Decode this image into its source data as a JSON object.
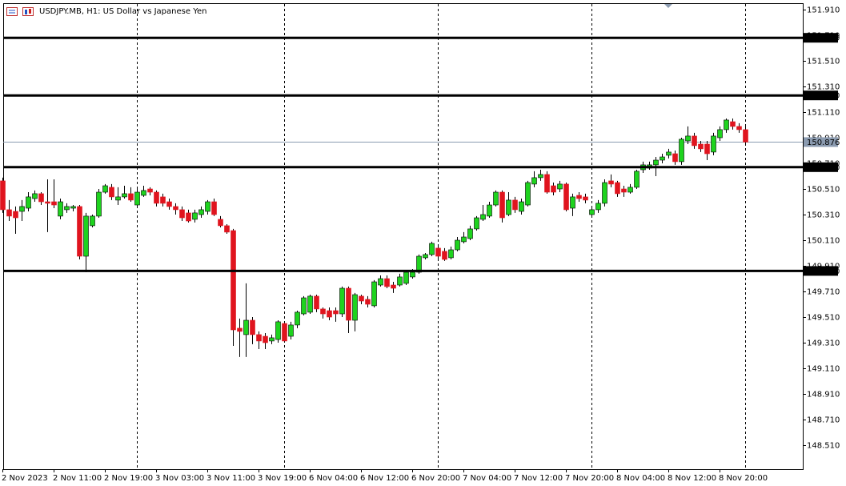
{
  "chart_data": {
    "type": "candlestick",
    "title": "USDJPY.MB, H1:  US Dollar vs Japanese Yen",
    "up_color": "#1ed31e",
    "down_color": "#e0141e",
    "x": [
      "2 Nov 2023",
      null,
      null,
      null,
      null,
      null,
      null,
      null,
      "2 Nov 11:00",
      null,
      null,
      null,
      null,
      null,
      null,
      null,
      "2 Nov 19:00",
      null,
      null,
      null,
      null,
      null,
      null,
      null,
      "3 Nov 03:00",
      null,
      null,
      null,
      null,
      null,
      null,
      null,
      "3 Nov 11:00",
      null,
      null,
      null,
      null,
      null,
      null,
      null,
      "3 Nov 19:00",
      null,
      null,
      null,
      null,
      null,
      null,
      null,
      "6 Nov 04:00",
      null,
      null,
      null,
      null,
      null,
      null,
      null,
      "6 Nov 12:00",
      null,
      null,
      null,
      null,
      null,
      null,
      null,
      "6 Nov 20:00",
      null,
      null,
      null,
      null,
      null,
      null,
      null,
      "7 Nov 04:00",
      null,
      null,
      null,
      null,
      null,
      null,
      null,
      "7 Nov 12:00",
      null,
      null,
      null,
      null,
      null,
      null,
      null,
      "7 Nov 20:00",
      null,
      null,
      null,
      null,
      null,
      null,
      null,
      "8 Nov 04:00",
      null,
      null,
      null,
      null,
      null,
      null,
      null,
      "8 Nov 12:00",
      null,
      null,
      null,
      null,
      null,
      null,
      null,
      "8 Nov 20:00",
      null,
      null,
      null,
      null
    ],
    "open": [
      150.573,
      150.348,
      150.335,
      150.335,
      150.36,
      150.435,
      150.473,
      150.41,
      150.41,
      150.298,
      150.348,
      150.36,
      150.373,
      149.985,
      150.223,
      150.298,
      150.485,
      150.523,
      150.423,
      150.448,
      150.473,
      150.385,
      150.46,
      150.51,
      150.485,
      150.448,
      150.41,
      150.373,
      150.348,
      150.323,
      150.273,
      150.31,
      150.335,
      150.41,
      150.273,
      150.223,
      150.185,
      149.423,
      149.373,
      149.485,
      149.373,
      149.36,
      149.323,
      149.335,
      149.46,
      149.36,
      149.448,
      149.535,
      149.548,
      149.673,
      149.573,
      149.56,
      149.56,
      149.535,
      149.735,
      149.485,
      149.673,
      149.648,
      149.598,
      149.76,
      149.81,
      149.76,
      149.76,
      149.773,
      149.823,
      149.86,
      149.973,
      149.998,
      150.048,
      150.023,
      149.973,
      150.035,
      150.098,
      150.123,
      150.198,
      150.273,
      150.298,
      150.385,
      150.485,
      150.31,
      150.423,
      150.335,
      150.385,
      150.548,
      150.598,
      150.623,
      150.535,
      150.51,
      150.548,
      150.36,
      150.46,
      150.448,
      150.31,
      150.348,
      150.398,
      150.573,
      150.56,
      150.51,
      150.485,
      150.523,
      150.66,
      150.673,
      150.698,
      150.735,
      150.773,
      150.785,
      150.723,
      150.885,
      150.923,
      150.86,
      150.86,
      150.798,
      150.91,
      150.973,
      151.035,
      150.998,
      150.973
    ],
    "high": [
      150.598,
      150.423,
      150.373,
      150.423,
      150.485,
      150.498,
      150.485,
      150.585,
      150.585,
      150.435,
      150.398,
      150.385,
      150.385,
      150.323,
      150.31,
      150.51,
      150.548,
      150.548,
      150.523,
      150.535,
      150.523,
      150.51,
      150.535,
      150.523,
      150.498,
      150.473,
      150.435,
      150.398,
      150.373,
      150.348,
      150.348,
      150.373,
      150.423,
      150.435,
      150.298,
      150.235,
      150.198,
      149.498,
      149.773,
      149.51,
      149.398,
      149.385,
      149.373,
      149.485,
      149.473,
      149.473,
      149.56,
      149.673,
      149.685,
      149.685,
      149.585,
      149.585,
      149.585,
      149.748,
      149.748,
      149.698,
      149.685,
      149.673,
      149.798,
      149.835,
      149.835,
      149.785,
      149.848,
      149.873,
      149.885,
      149.998,
      150.01,
      150.098,
      150.073,
      150.048,
      150.06,
      150.135,
      150.173,
      150.223,
      150.298,
      150.385,
      150.41,
      150.498,
      150.498,
      150.485,
      150.448,
      150.435,
      150.573,
      150.648,
      150.66,
      150.648,
      150.56,
      150.573,
      150.56,
      150.473,
      150.485,
      150.473,
      150.373,
      150.423,
      150.585,
      150.623,
      150.573,
      150.535,
      150.548,
      150.66,
      150.723,
      150.723,
      150.76,
      150.785,
      150.823,
      150.81,
      150.91,
      150.998,
      150.948,
      150.885,
      150.885,
      150.948,
      150.998,
      151.06,
      151.06,
      151.023,
      150.998
    ],
    "low": [
      150.323,
      150.26,
      150.16,
      150.26,
      150.335,
      150.41,
      150.385,
      150.173,
      150.36,
      150.273,
      150.323,
      150.335,
      149.96,
      149.86,
      150.21,
      150.285,
      150.473,
      150.423,
      150.385,
      150.435,
      150.41,
      150.36,
      150.448,
      150.46,
      150.373,
      150.373,
      150.348,
      150.31,
      150.26,
      150.248,
      150.248,
      150.285,
      150.31,
      150.298,
      150.21,
      150.16,
      149.285,
      149.198,
      149.198,
      149.298,
      149.26,
      149.26,
      149.298,
      149.31,
      149.31,
      149.335,
      149.423,
      149.523,
      149.535,
      149.548,
      149.498,
      149.485,
      149.473,
      149.51,
      149.385,
      149.398,
      149.61,
      149.585,
      149.585,
      149.748,
      149.735,
      149.698,
      149.748,
      149.76,
      149.81,
      149.848,
      149.96,
      149.985,
      149.96,
      149.948,
      149.96,
      150.023,
      150.085,
      150.11,
      150.185,
      150.26,
      150.285,
      150.373,
      150.248,
      150.298,
      150.323,
      150.31,
      150.373,
      150.523,
      150.573,
      150.473,
      150.46,
      150.485,
      150.335,
      150.298,
      150.41,
      150.398,
      150.285,
      150.323,
      150.373,
      150.523,
      150.448,
      150.448,
      150.473,
      150.51,
      150.635,
      150.66,
      150.61,
      150.71,
      150.748,
      150.698,
      150.698,
      150.86,
      150.823,
      150.798,
      150.735,
      150.773,
      150.885,
      150.948,
      150.973,
      150.948,
      150.86
    ],
    "close": [
      150.348,
      150.298,
      150.285,
      150.373,
      150.448,
      150.473,
      150.41,
      150.398,
      150.385,
      150.41,
      150.373,
      150.373,
      149.985,
      150.298,
      150.298,
      150.485,
      150.535,
      150.448,
      150.448,
      150.473,
      150.423,
      150.485,
      150.498,
      150.485,
      150.398,
      150.398,
      150.373,
      150.348,
      150.285,
      150.26,
      150.323,
      150.348,
      150.41,
      150.31,
      150.223,
      150.173,
      149.41,
      149.398,
      149.485,
      149.373,
      149.323,
      149.31,
      149.348,
      149.473,
      149.323,
      149.448,
      149.548,
      149.66,
      149.673,
      149.573,
      149.535,
      149.51,
      149.535,
      149.735,
      149.485,
      149.685,
      149.635,
      149.61,
      149.785,
      149.81,
      149.748,
      149.735,
      149.823,
      149.86,
      149.86,
      149.985,
      149.998,
      150.085,
      149.985,
      149.96,
      150.035,
      150.11,
      150.135,
      150.198,
      150.285,
      150.31,
      150.385,
      150.485,
      150.285,
      150.423,
      150.348,
      150.41,
      150.56,
      150.598,
      150.623,
      150.485,
      150.485,
      150.548,
      150.348,
      150.448,
      150.435,
      150.423,
      150.348,
      150.398,
      150.56,
      150.548,
      150.473,
      150.485,
      150.523,
      150.648,
      150.698,
      150.698,
      150.735,
      150.76,
      150.798,
      150.723,
      150.898,
      150.923,
      150.848,
      150.823,
      150.785,
      150.923,
      150.973,
      151.048,
      150.998,
      150.973,
      150.876
    ],
    "ylim": [
      148.3225,
      151.96
    ],
    "yticks": [
      {
        "value": 151.91,
        "label": "151.910"
      },
      {
        "value": 151.71,
        "label": "151.710"
      },
      {
        "value": 151.51,
        "label": "151.510"
      },
      {
        "value": 151.31,
        "label": "151.310"
      },
      {
        "value": 151.11,
        "label": "151.110"
      },
      {
        "value": 150.91,
        "label": "150.910"
      },
      {
        "value": 150.71,
        "label": "150.710"
      },
      {
        "value": 150.51,
        "label": "150.510"
      },
      {
        "value": 150.31,
        "label": "150.310"
      },
      {
        "value": 150.11,
        "label": "150.110"
      },
      {
        "value": 149.91,
        "label": "149.910"
      },
      {
        "value": 149.71,
        "label": "149.710"
      },
      {
        "value": 149.51,
        "label": "149.510"
      },
      {
        "value": 149.31,
        "label": "149.310"
      },
      {
        "value": 149.11,
        "label": "149.110"
      },
      {
        "value": 148.91,
        "label": "148.910"
      },
      {
        "value": 148.71,
        "label": "148.710"
      },
      {
        "value": 148.51,
        "label": "148.510"
      }
    ],
    "levels": [
      {
        "value": 151.69,
        "label": "151.690"
      },
      {
        "value": 151.24,
        "label": "151.240"
      },
      {
        "value": 150.68,
        "label": "150.680"
      },
      {
        "value": 149.87,
        "label": "149.870"
      }
    ],
    "last_price": 150.876,
    "last_price_color": "#8b9bb0",
    "level_color": "#000000",
    "grid": false
  }
}
